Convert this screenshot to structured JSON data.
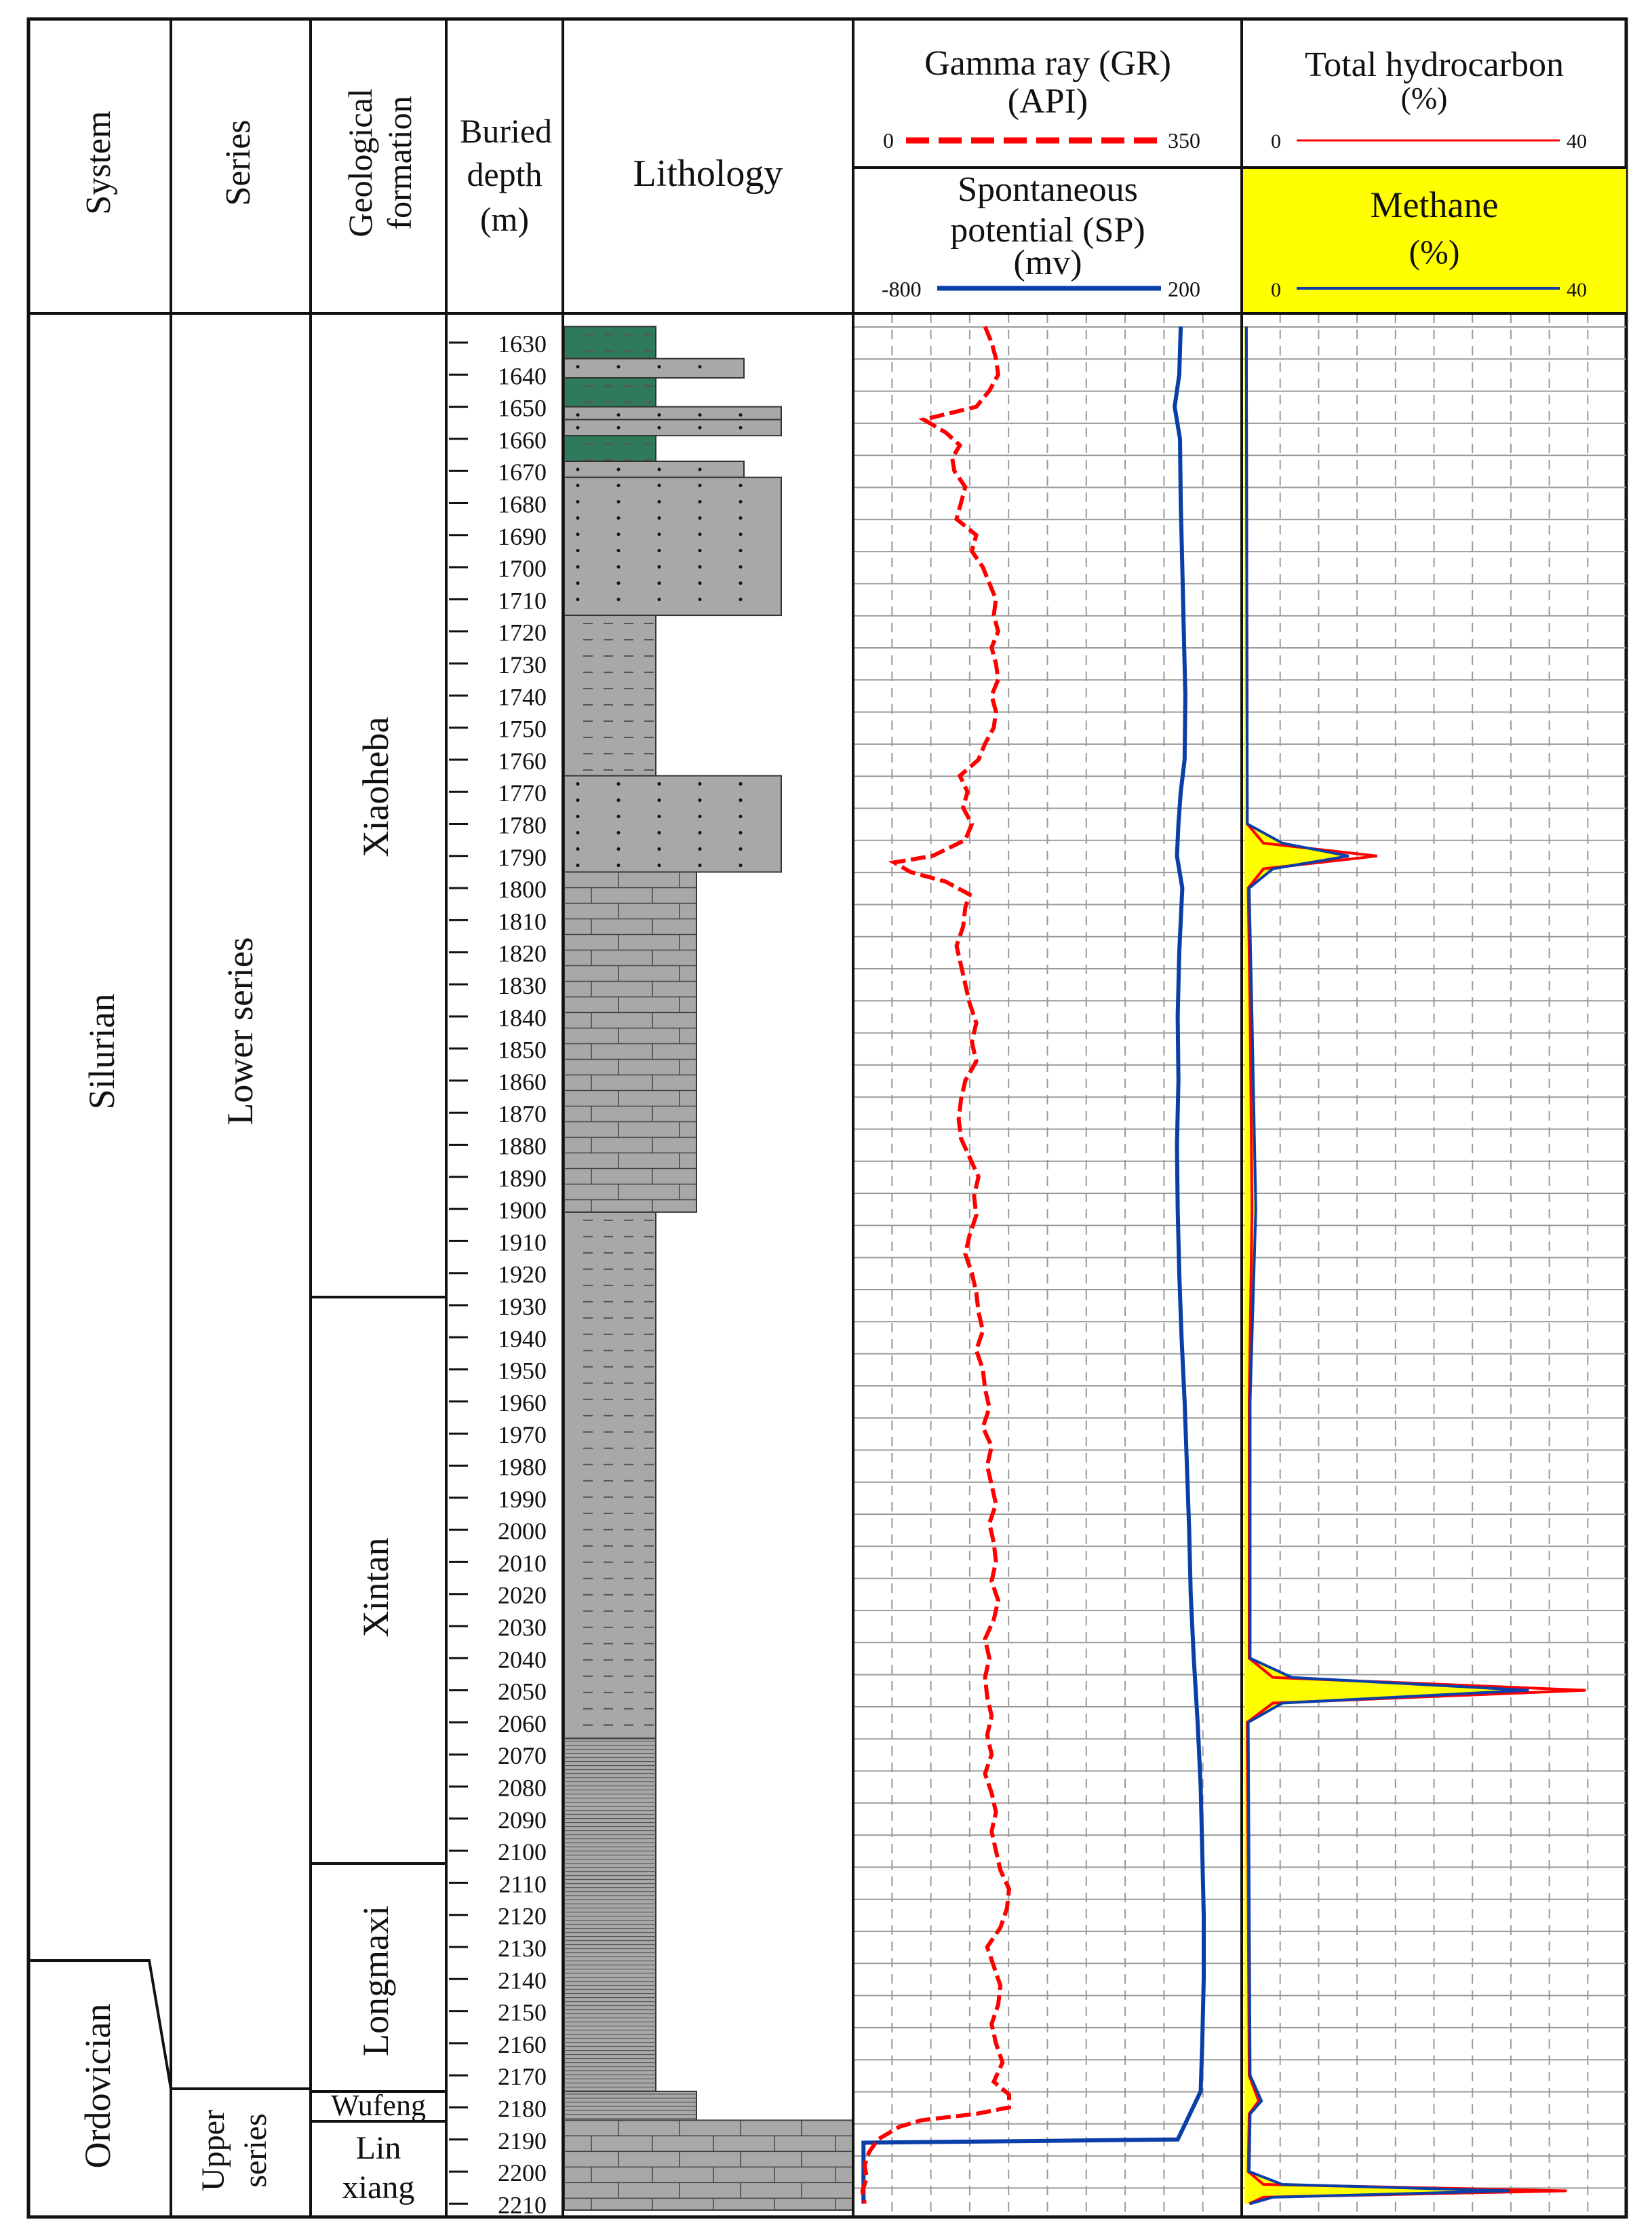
{
  "headers": {
    "system": "System",
    "series": "Series",
    "formation_line1": "Geological",
    "formation_line2": "formation",
    "depth_line1": "Buried",
    "depth_line2": "depth",
    "depth_line3": "(m)",
    "lithology": "Lithology",
    "gr_line1": "Gamma ray (GR)",
    "gr_line2": "(API)",
    "gr_min": "0",
    "gr_max": "350",
    "sp_line1": "Spontaneous",
    "sp_line2": "potential (SP)",
    "sp_line3": "(mv)",
    "sp_min": "-800",
    "sp_max": "200",
    "th_line1": "Total hydrocarbon",
    "th_line2": "(%)",
    "th_min": "0",
    "th_max": "40",
    "ch4_line1": "Methane",
    "ch4_line2": "(%)",
    "ch4_min": "0",
    "ch4_max": "40"
  },
  "stratigraphy": {
    "systems": [
      "Silurian",
      "Ordovician"
    ],
    "series": [
      "Lower series",
      "Upper",
      "series"
    ],
    "formations": [
      "Xiaoheba",
      "Xintan",
      "Longmaxi",
      "Wufeng",
      "Lin",
      "xiang"
    ]
  },
  "depth_ticks": [
    1630,
    1640,
    1650,
    1660,
    1670,
    1680,
    1690,
    1700,
    1710,
    1720,
    1730,
    1740,
    1750,
    1760,
    1770,
    1780,
    1790,
    1800,
    1810,
    1820,
    1830,
    1840,
    1850,
    1860,
    1870,
    1880,
    1890,
    1900,
    1910,
    1920,
    1930,
    1940,
    1950,
    1960,
    1970,
    1980,
    1990,
    2000,
    2010,
    2020,
    2030,
    2040,
    2050,
    2060,
    2070,
    2080,
    2090,
    2100,
    2110,
    2120,
    2130,
    2140,
    2150,
    2160,
    2170,
    2180,
    2190,
    2200,
    2210
  ],
  "lithology_colors": {
    "green_mudstone": "#2f7a5a",
    "grey_rock": "#a8a8a8",
    "gr_curve": "#ff0000",
    "sp_curve": "#0a3ea8",
    "methane_fill": "#ffff00",
    "methane_header": "#ffff00"
  },
  "curves": {
    "gamma_ray_api": [
      [
        1625,
        118
      ],
      [
        1630,
        124
      ],
      [
        1635,
        128
      ],
      [
        1640,
        130
      ],
      [
        1645,
        122
      ],
      [
        1650,
        110
      ],
      [
        1654,
        62
      ],
      [
        1658,
        82
      ],
      [
        1662,
        95
      ],
      [
        1666,
        88
      ],
      [
        1670,
        90
      ],
      [
        1675,
        100
      ],
      [
        1680,
        96
      ],
      [
        1685,
        92
      ],
      [
        1690,
        110
      ],
      [
        1695,
        106
      ],
      [
        1700,
        116
      ],
      [
        1705,
        122
      ],
      [
        1710,
        128
      ],
      [
        1715,
        126
      ],
      [
        1720,
        130
      ],
      [
        1725,
        124
      ],
      [
        1730,
        128
      ],
      [
        1735,
        130
      ],
      [
        1740,
        124
      ],
      [
        1745,
        128
      ],
      [
        1750,
        126
      ],
      [
        1755,
        118
      ],
      [
        1760,
        112
      ],
      [
        1765,
        95
      ],
      [
        1770,
        102
      ],
      [
        1775,
        98
      ],
      [
        1780,
        106
      ],
      [
        1785,
        100
      ],
      [
        1790,
        70
      ],
      [
        1792,
        35
      ],
      [
        1795,
        50
      ],
      [
        1798,
        82
      ],
      [
        1802,
        104
      ],
      [
        1806,
        100
      ],
      [
        1812,
        98
      ],
      [
        1818,
        92
      ],
      [
        1824,
        96
      ],
      [
        1830,
        100
      ],
      [
        1836,
        104
      ],
      [
        1842,
        110
      ],
      [
        1848,
        106
      ],
      [
        1854,
        110
      ],
      [
        1860,
        100
      ],
      [
        1866,
        96
      ],
      [
        1872,
        94
      ],
      [
        1878,
        96
      ],
      [
        1884,
        104
      ],
      [
        1890,
        112
      ],
      [
        1896,
        108
      ],
      [
        1902,
        110
      ],
      [
        1908,
        104
      ],
      [
        1914,
        100
      ],
      [
        1920,
        106
      ],
      [
        1926,
        110
      ],
      [
        1932,
        112
      ],
      [
        1938,
        116
      ],
      [
        1944,
        110
      ],
      [
        1950,
        116
      ],
      [
        1956,
        118
      ],
      [
        1962,
        122
      ],
      [
        1968,
        116
      ],
      [
        1974,
        124
      ],
      [
        1980,
        120
      ],
      [
        1986,
        124
      ],
      [
        1992,
        128
      ],
      [
        1998,
        122
      ],
      [
        2004,
        126
      ],
      [
        2010,
        128
      ],
      [
        2016,
        124
      ],
      [
        2022,
        130
      ],
      [
        2028,
        126
      ],
      [
        2034,
        118
      ],
      [
        2040,
        122
      ],
      [
        2046,
        118
      ],
      [
        2052,
        120
      ],
      [
        2058,
        124
      ],
      [
        2064,
        120
      ],
      [
        2070,
        124
      ],
      [
        2076,
        118
      ],
      [
        2082,
        124
      ],
      [
        2088,
        128
      ],
      [
        2094,
        124
      ],
      [
        2100,
        128
      ],
      [
        2106,
        132
      ],
      [
        2112,
        140
      ],
      [
        2118,
        138
      ],
      [
        2124,
        132
      ],
      [
        2130,
        120
      ],
      [
        2136,
        126
      ],
      [
        2142,
        132
      ],
      [
        2148,
        130
      ],
      [
        2154,
        124
      ],
      [
        2160,
        128
      ],
      [
        2166,
        134
      ],
      [
        2172,
        126
      ],
      [
        2176,
        140
      ],
      [
        2180,
        140
      ],
      [
        2182,
        110
      ],
      [
        2184,
        60
      ],
      [
        2186,
        40
      ],
      [
        2190,
        20
      ],
      [
        2194,
        12
      ],
      [
        2198,
        8
      ],
      [
        2202,
        10
      ],
      [
        2206,
        6
      ],
      [
        2210,
        8
      ]
    ],
    "spontaneous_potential_mv": [
      [
        1625,
        48
      ],
      [
        1640,
        44
      ],
      [
        1650,
        32
      ],
      [
        1660,
        46
      ],
      [
        1680,
        48
      ],
      [
        1700,
        52
      ],
      [
        1720,
        56
      ],
      [
        1740,
        60
      ],
      [
        1760,
        58
      ],
      [
        1770,
        48
      ],
      [
        1780,
        42
      ],
      [
        1790,
        38
      ],
      [
        1800,
        52
      ],
      [
        1820,
        44
      ],
      [
        1840,
        40
      ],
      [
        1860,
        42
      ],
      [
        1880,
        38
      ],
      [
        1900,
        40
      ],
      [
        1920,
        44
      ],
      [
        1940,
        50
      ],
      [
        1960,
        58
      ],
      [
        1980,
        64
      ],
      [
        2000,
        70
      ],
      [
        2020,
        74
      ],
      [
        2040,
        82
      ],
      [
        2060,
        92
      ],
      [
        2080,
        100
      ],
      [
        2100,
        104
      ],
      [
        2120,
        108
      ],
      [
        2140,
        108
      ],
      [
        2160,
        104
      ],
      [
        2175,
        100
      ],
      [
        2185,
        60
      ],
      [
        2190,
        40
      ],
      [
        2191,
        -780
      ],
      [
        2210,
        -780
      ]
    ],
    "total_hydrocarbon_pct": [
      [
        1625,
        0.2
      ],
      [
        1780,
        0.3
      ],
      [
        1786,
        2.0
      ],
      [
        1790,
        14
      ],
      [
        1794,
        2.0
      ],
      [
        1800,
        0.4
      ],
      [
        1840,
        0.6
      ],
      [
        1900,
        0.8
      ],
      [
        1960,
        0.5
      ],
      [
        2040,
        0.5
      ],
      [
        2046,
        3.0
      ],
      [
        2050,
        36
      ],
      [
        2054,
        3.0
      ],
      [
        2060,
        0.3
      ],
      [
        2170,
        0.5
      ],
      [
        2178,
        1.5
      ],
      [
        2182,
        0.5
      ],
      [
        2200,
        0.4
      ],
      [
        2204,
        2.0
      ],
      [
        2206,
        34
      ],
      [
        2208,
        2.0
      ],
      [
        2210,
        0.5
      ]
    ],
    "methane_pct": [
      [
        1625,
        0.2
      ],
      [
        1780,
        0.3
      ],
      [
        1786,
        4.0
      ],
      [
        1790,
        11
      ],
      [
        1794,
        3.0
      ],
      [
        1800,
        0.5
      ],
      [
        1840,
        0.8
      ],
      [
        1900,
        1.2
      ],
      [
        1960,
        0.6
      ],
      [
        2040,
        0.6
      ],
      [
        2046,
        5.0
      ],
      [
        2050,
        30
      ],
      [
        2054,
        4.0
      ],
      [
        2060,
        0.4
      ],
      [
        2170,
        0.6
      ],
      [
        2178,
        1.8
      ],
      [
        2182,
        0.6
      ],
      [
        2200,
        0.5
      ],
      [
        2204,
        4.0
      ],
      [
        2206,
        28
      ],
      [
        2208,
        3.0
      ],
      [
        2210,
        0.6
      ]
    ]
  }
}
